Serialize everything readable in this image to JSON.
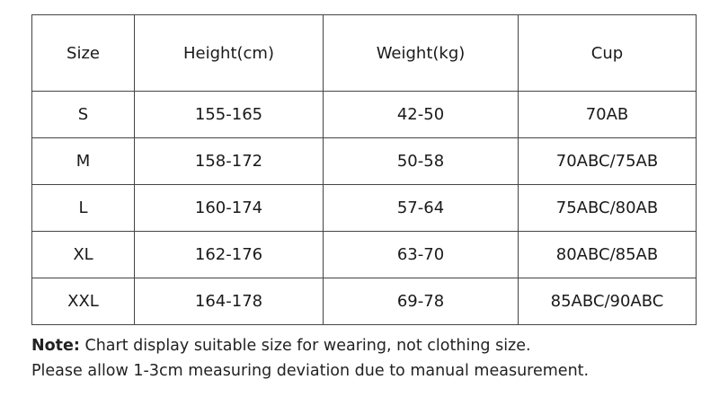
{
  "table": {
    "headers": [
      "Size",
      "Height(cm)",
      "Weight(kg)",
      "Cup"
    ],
    "rows": [
      [
        "S",
        "155-165",
        "42-50",
        "70AB"
      ],
      [
        "M",
        "158-172",
        "50-58",
        "70ABC/75AB"
      ],
      [
        "L",
        "160-174",
        "57-64",
        "75ABC/80AB"
      ],
      [
        "XL",
        "162-176",
        "63-70",
        "80ABC/85AB"
      ],
      [
        "XXL",
        "164-178",
        "69-78",
        "85ABC/90ABC"
      ]
    ]
  },
  "notes": {
    "label": "Note:",
    "line1": " Chart display suitable size for wearing, not clothing size.",
    "line2": "Please allow 1-3cm measuring deviation due to manual measurement."
  }
}
